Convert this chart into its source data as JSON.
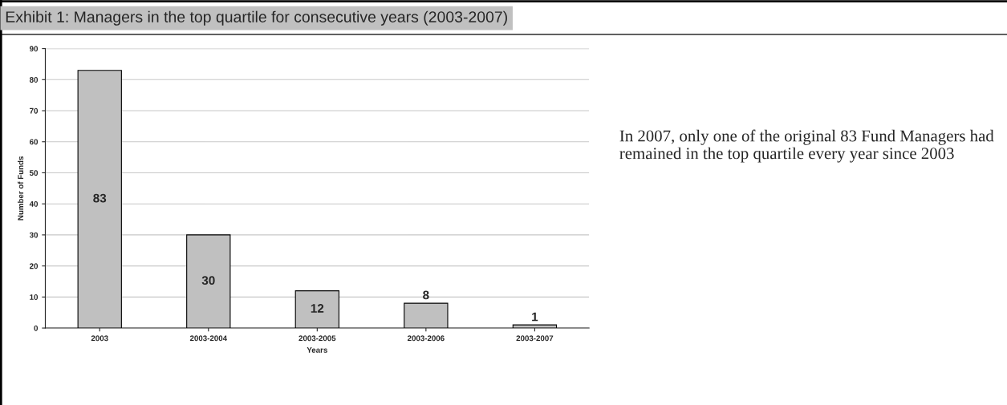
{
  "chart_data": {
    "type": "bar",
    "title": "Exhibit 1: Managers in the top quartile for consecutive years (2003-2007)",
    "categories": [
      "2003",
      "2003-2004",
      "2003-2005",
      "2003-2006",
      "2003-2007"
    ],
    "values": [
      83,
      30,
      12,
      8,
      1
    ],
    "color": "#c0c0c0",
    "xlabel": "Years",
    "ylabel": "Number of Funds",
    "ylim": [
      0,
      90
    ],
    "yticks": [
      0,
      10,
      20,
      30,
      40,
      50,
      60,
      70,
      80,
      90
    ],
    "grid": "y",
    "data_labels": true,
    "annotations": [
      "In 2007, only one of the original 83 Fund Managers had remained in the top quartile every year since 2003"
    ]
  }
}
